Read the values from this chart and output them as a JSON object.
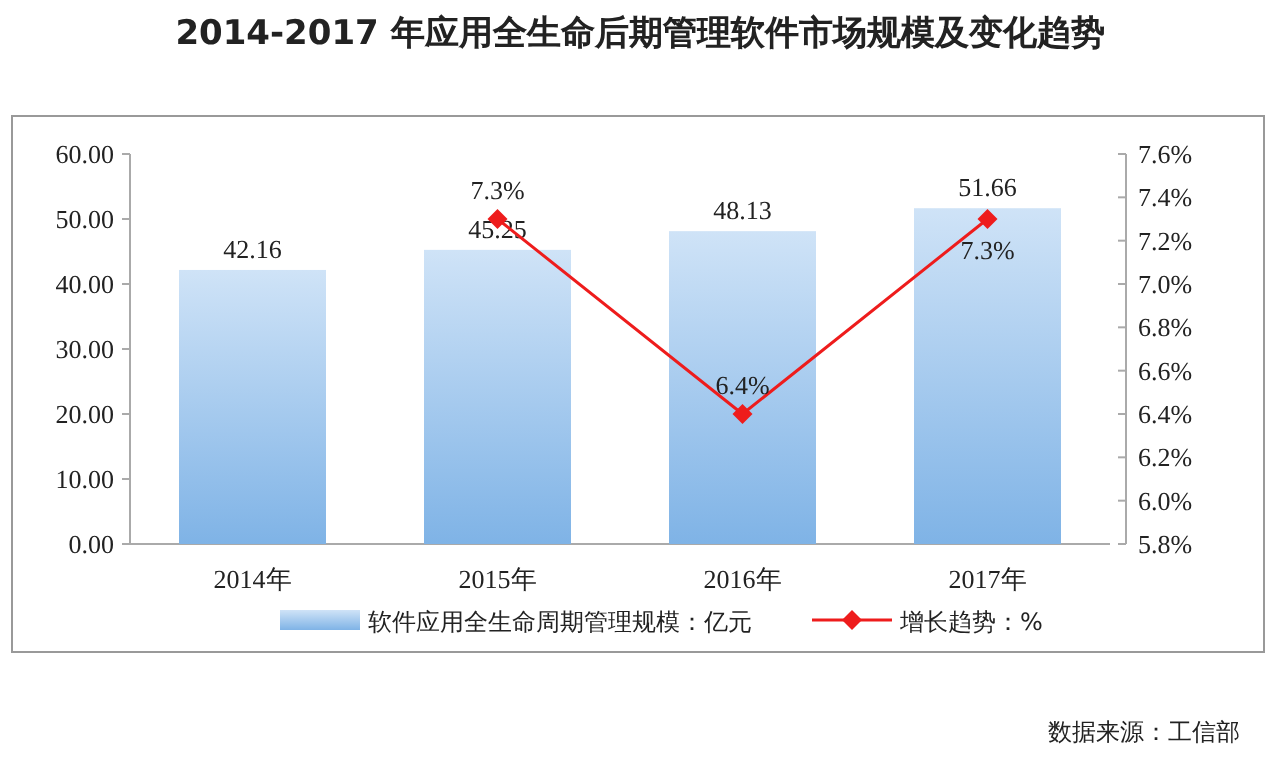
{
  "chart_data": {
    "type": "bar",
    "title": "2014-2017 年应用全生命后期管理软件市场规模及变化趋势",
    "categories": [
      "2014年",
      "2015年",
      "2016年",
      "2017年"
    ],
    "series": [
      {
        "name": "软件应用全生命周期管理规模：亿元",
        "color": "#7fb3e6",
        "values": [
          42.16,
          45.25,
          48.13,
          51.66
        ],
        "value_labels": [
          "42.16",
          "45.25",
          "48.13",
          "51.66"
        ]
      },
      {
        "name": "增长趋势：%",
        "type": "line",
        "axis": "y2",
        "color": "#ee1c1c",
        "marker": "diamond",
        "values": [
          null,
          7.3,
          6.4,
          7.3
        ],
        "value_labels": [
          null,
          "7.3%",
          "6.4%",
          "7.3%"
        ]
      }
    ],
    "ylim": [
      0,
      60
    ],
    "yticks": [
      {
        "value": 0,
        "label": "0.00"
      },
      {
        "value": 10,
        "label": "10.00"
      },
      {
        "value": 20,
        "label": "20.00"
      },
      {
        "value": 30,
        "label": "30.00"
      },
      {
        "value": 40,
        "label": "40.00"
      },
      {
        "value": 50,
        "label": "50.00"
      },
      {
        "value": 60,
        "label": "60.00"
      }
    ],
    "y2lim": [
      5.8,
      7.6
    ],
    "y2ticks": [
      {
        "value": 5.8,
        "label": "5.8%"
      },
      {
        "value": 6.0,
        "label": "6.0%"
      },
      {
        "value": 6.2,
        "label": "6.2%"
      },
      {
        "value": 6.4,
        "label": "6.4%"
      },
      {
        "value": 6.6,
        "label": "6.6%"
      },
      {
        "value": 6.8,
        "label": "6.8%"
      },
      {
        "value": 7.0,
        "label": "7.0%"
      },
      {
        "value": 7.2,
        "label": "7.2%"
      },
      {
        "value": 7.4,
        "label": "7.4%"
      },
      {
        "value": 7.6,
        "label": "7.6%"
      }
    ],
    "legend": "bottom",
    "annotations": [
      "数据来源：工信部"
    ]
  }
}
